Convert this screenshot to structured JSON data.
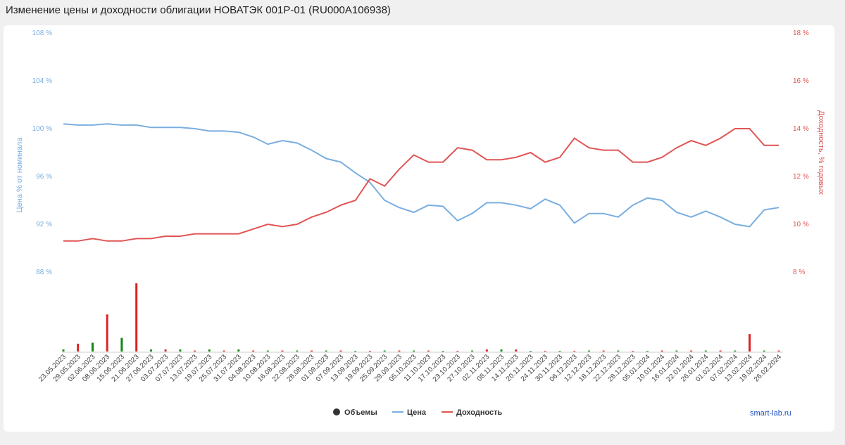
{
  "title": "Изменение цены и доходности облигации НОВАТЭК 001P-01 (RU000A106938)",
  "credit": "smart-lab.ru",
  "legend": [
    {
      "label": "Объемы",
      "color": "#333333"
    },
    {
      "label": "Цена",
      "color": "#7aaee0"
    },
    {
      "label": "Доходность",
      "color": "#e05555"
    }
  ],
  "chart_data": {
    "type": "line",
    "ylabel_left": "Цена % от номинала",
    "ylabel_right": "Доходность, % годовых",
    "yticks_left": [
      "108 %",
      "104 %",
      "100 %",
      "96 %",
      "92 %",
      "88 %"
    ],
    "yticks_right": [
      "18 %",
      "16 %",
      "14 %",
      "12 %",
      "10 %",
      "8 %"
    ],
    "ylim_left": [
      84,
      108
    ],
    "ylim_right": [
      6,
      18
    ],
    "x_labels": [
      "23.05.2023",
      "29.05.2023",
      "02.06.2023",
      "08.06.2023",
      "15.06.2023",
      "21.06.2023",
      "27.06.2023",
      "03.07.2023",
      "07.07.2023",
      "13.07.2023",
      "19.07.2023",
      "25.07.2023",
      "31.07.2023",
      "04.08.2023",
      "10.08.2023",
      "16.08.2023",
      "22.08.2023",
      "28.08.2023",
      "01.09.2023",
      "07.09.2023",
      "13.09.2023",
      "19.09.2023",
      "25.09.2023",
      "29.09.2023",
      "05.10.2023",
      "11.10.2023",
      "17.10.2023",
      "23.10.2023",
      "27.10.2023",
      "02.11.2023",
      "08.11.2023",
      "14.11.2023",
      "20.11.2023",
      "24.11.2023",
      "30.11.2023",
      "06.12.2023",
      "12.12.2023",
      "18.12.2023",
      "22.12.2023",
      "28.12.2023",
      "05.01.2024",
      "10.01.2024",
      "16.01.2024",
      "22.01.2024",
      "26.01.2024",
      "01.02.2024",
      "07.02.2024",
      "13.02.2024",
      "19.02.2024",
      "26.02.2024"
    ],
    "grid": false,
    "series": [
      {
        "name": "Цена",
        "axis": "left",
        "color": "#7aaee0",
        "values": [
          100.4,
          100.3,
          100.3,
          100.4,
          100.3,
          100.3,
          100.1,
          100.1,
          100.1,
          100.0,
          99.8,
          99.8,
          99.7,
          99.3,
          98.7,
          99.0,
          98.8,
          98.2,
          97.5,
          97.2,
          96.3,
          95.5,
          94.0,
          93.4,
          93.0,
          93.6,
          93.5,
          92.3,
          92.9,
          93.8,
          93.8,
          93.6,
          93.3,
          94.1,
          93.6,
          92.1,
          92.9,
          92.9,
          92.6,
          93.6,
          94.2,
          94.0,
          93.0,
          92.6,
          93.1,
          92.6,
          92.0,
          91.8,
          93.2,
          93.4
        ]
      },
      {
        "name": "Доходность",
        "axis": "right",
        "color": "#e05555",
        "values": [
          9.3,
          9.3,
          9.4,
          9.3,
          9.3,
          9.4,
          9.4,
          9.5,
          9.5,
          9.6,
          9.6,
          9.6,
          9.6,
          9.8,
          10.0,
          9.9,
          10.0,
          10.3,
          10.5,
          10.8,
          11.0,
          11.9,
          11.6,
          12.3,
          12.9,
          12.6,
          12.6,
          13.2,
          13.1,
          12.7,
          12.7,
          12.8,
          13.0,
          12.6,
          12.8,
          13.6,
          13.2,
          13.1,
          13.1,
          12.6,
          12.6,
          12.8,
          13.2,
          13.5,
          13.3,
          13.6,
          14.0,
          14.0,
          13.3,
          13.3
        ]
      },
      {
        "name": "Объемы",
        "axis": "volume",
        "colors": [
          "#118811",
          "#dd2222"
        ],
        "values": [
          2,
          8,
          9,
          38,
          14,
          70,
          2,
          2,
          2,
          1,
          2,
          1,
          2,
          1,
          1,
          1,
          1,
          1,
          1,
          1,
          0,
          0,
          1,
          1,
          1,
          1,
          0,
          0,
          1,
          2,
          2,
          2,
          0,
          0,
          0,
          0,
          1,
          1,
          1,
          0,
          0,
          1,
          1,
          1,
          1,
          1,
          1,
          18,
          1,
          1
        ]
      }
    ]
  }
}
